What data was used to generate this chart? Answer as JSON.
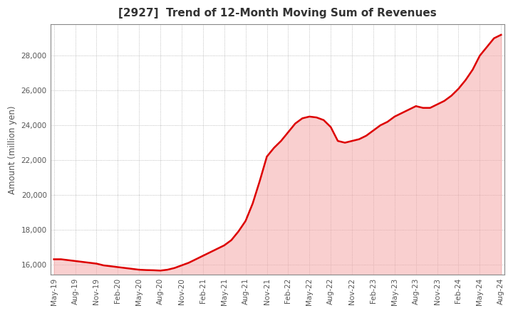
{
  "title": "[2927]  Trend of 12-Month Moving Sum of Revenues",
  "ylabel": "Amount (million yen)",
  "line_color": "#dd0000",
  "fill_color": "#f5a0a0",
  "fill_alpha": 0.5,
  "line_width": 1.8,
  "background_color": "#ffffff",
  "plot_bg_color": "#ffffff",
  "grid_color": "#999999",
  "ylim": [
    15400,
    29800
  ],
  "yticks": [
    16000,
    18000,
    20000,
    22000,
    24000,
    26000,
    28000
  ],
  "values": [
    16300,
    16300,
    16250,
    16200,
    16150,
    16100,
    16050,
    15950,
    15900,
    15850,
    15800,
    15750,
    15700,
    15680,
    15670,
    15650,
    15700,
    15800,
    15950,
    16100,
    16300,
    16500,
    16700,
    16900,
    17100,
    17400,
    17900,
    18500,
    19500,
    20800,
    22200,
    22700,
    23100,
    23600,
    24100,
    24400,
    24500,
    24450,
    24300,
    23900,
    23100,
    23000,
    23100,
    23200,
    23400,
    23700,
    24000,
    24200,
    24500,
    24700,
    24900,
    25100,
    25000,
    25000,
    25200,
    25400,
    25700,
    26100,
    26600,
    27200,
    28000,
    28500,
    29000,
    29200
  ],
  "n_points": 64,
  "xtick_labels": [
    "May-19",
    "Aug-19",
    "Nov-19",
    "Feb-20",
    "May-20",
    "Aug-20",
    "Nov-20",
    "Feb-21",
    "May-21",
    "Aug-21",
    "Nov-21",
    "Feb-22",
    "May-22",
    "Aug-22",
    "Nov-22",
    "Feb-23",
    "May-23",
    "Aug-23",
    "Nov-23",
    "Feb-24",
    "May-24",
    "Aug-24"
  ],
  "xtick_positions": [
    0,
    3,
    6,
    9,
    12,
    15,
    18,
    21,
    24,
    27,
    30,
    33,
    36,
    39,
    42,
    45,
    48,
    51,
    54,
    57,
    60,
    63
  ],
  "title_color": "#333333",
  "tick_color": "#555555",
  "spine_color": "#888888"
}
